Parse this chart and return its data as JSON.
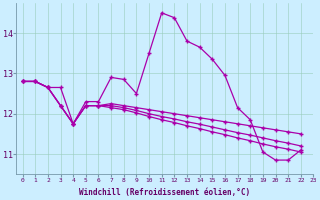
{
  "xlabel": "Windchill (Refroidissement éolien,°C)",
  "bg_color": "#cceeff",
  "line_color": "#aa00aa",
  "x_ticks": [
    0,
    1,
    2,
    3,
    4,
    5,
    6,
    7,
    8,
    9,
    10,
    11,
    12,
    13,
    14,
    15,
    16,
    17,
    18,
    19,
    20,
    21,
    22,
    23
  ],
  "y_ticks": [
    11,
    12,
    13,
    14
  ],
  "y_min": 10.5,
  "y_max": 14.75,
  "line_main": [
    12.8,
    12.8,
    12.65,
    12.65,
    11.75,
    12.3,
    12.3,
    12.9,
    12.85,
    12.5,
    13.5,
    14.5,
    14.38,
    13.8,
    13.65,
    13.35,
    12.95,
    12.15,
    11.85,
    11.05,
    10.85,
    10.85,
    11.1
  ],
  "line2": [
    12.8,
    12.8,
    12.65,
    12.2,
    11.75,
    12.2,
    12.2,
    12.25,
    12.2,
    12.15,
    12.1,
    12.05,
    12.0,
    11.95,
    11.9,
    11.85,
    11.8,
    11.75,
    11.7,
    11.65,
    11.6,
    11.55,
    11.5
  ],
  "line3": [
    12.8,
    12.8,
    12.65,
    12.2,
    11.75,
    12.2,
    12.2,
    12.2,
    12.15,
    12.08,
    12.0,
    11.93,
    11.87,
    11.8,
    11.74,
    11.67,
    11.6,
    11.53,
    11.47,
    11.4,
    11.33,
    11.27,
    11.2
  ],
  "line4": [
    12.8,
    12.8,
    12.65,
    12.2,
    11.75,
    12.2,
    12.2,
    12.15,
    12.1,
    12.02,
    11.93,
    11.85,
    11.78,
    11.7,
    11.63,
    11.55,
    11.48,
    11.4,
    11.33,
    11.25,
    11.18,
    11.12,
    11.05
  ]
}
